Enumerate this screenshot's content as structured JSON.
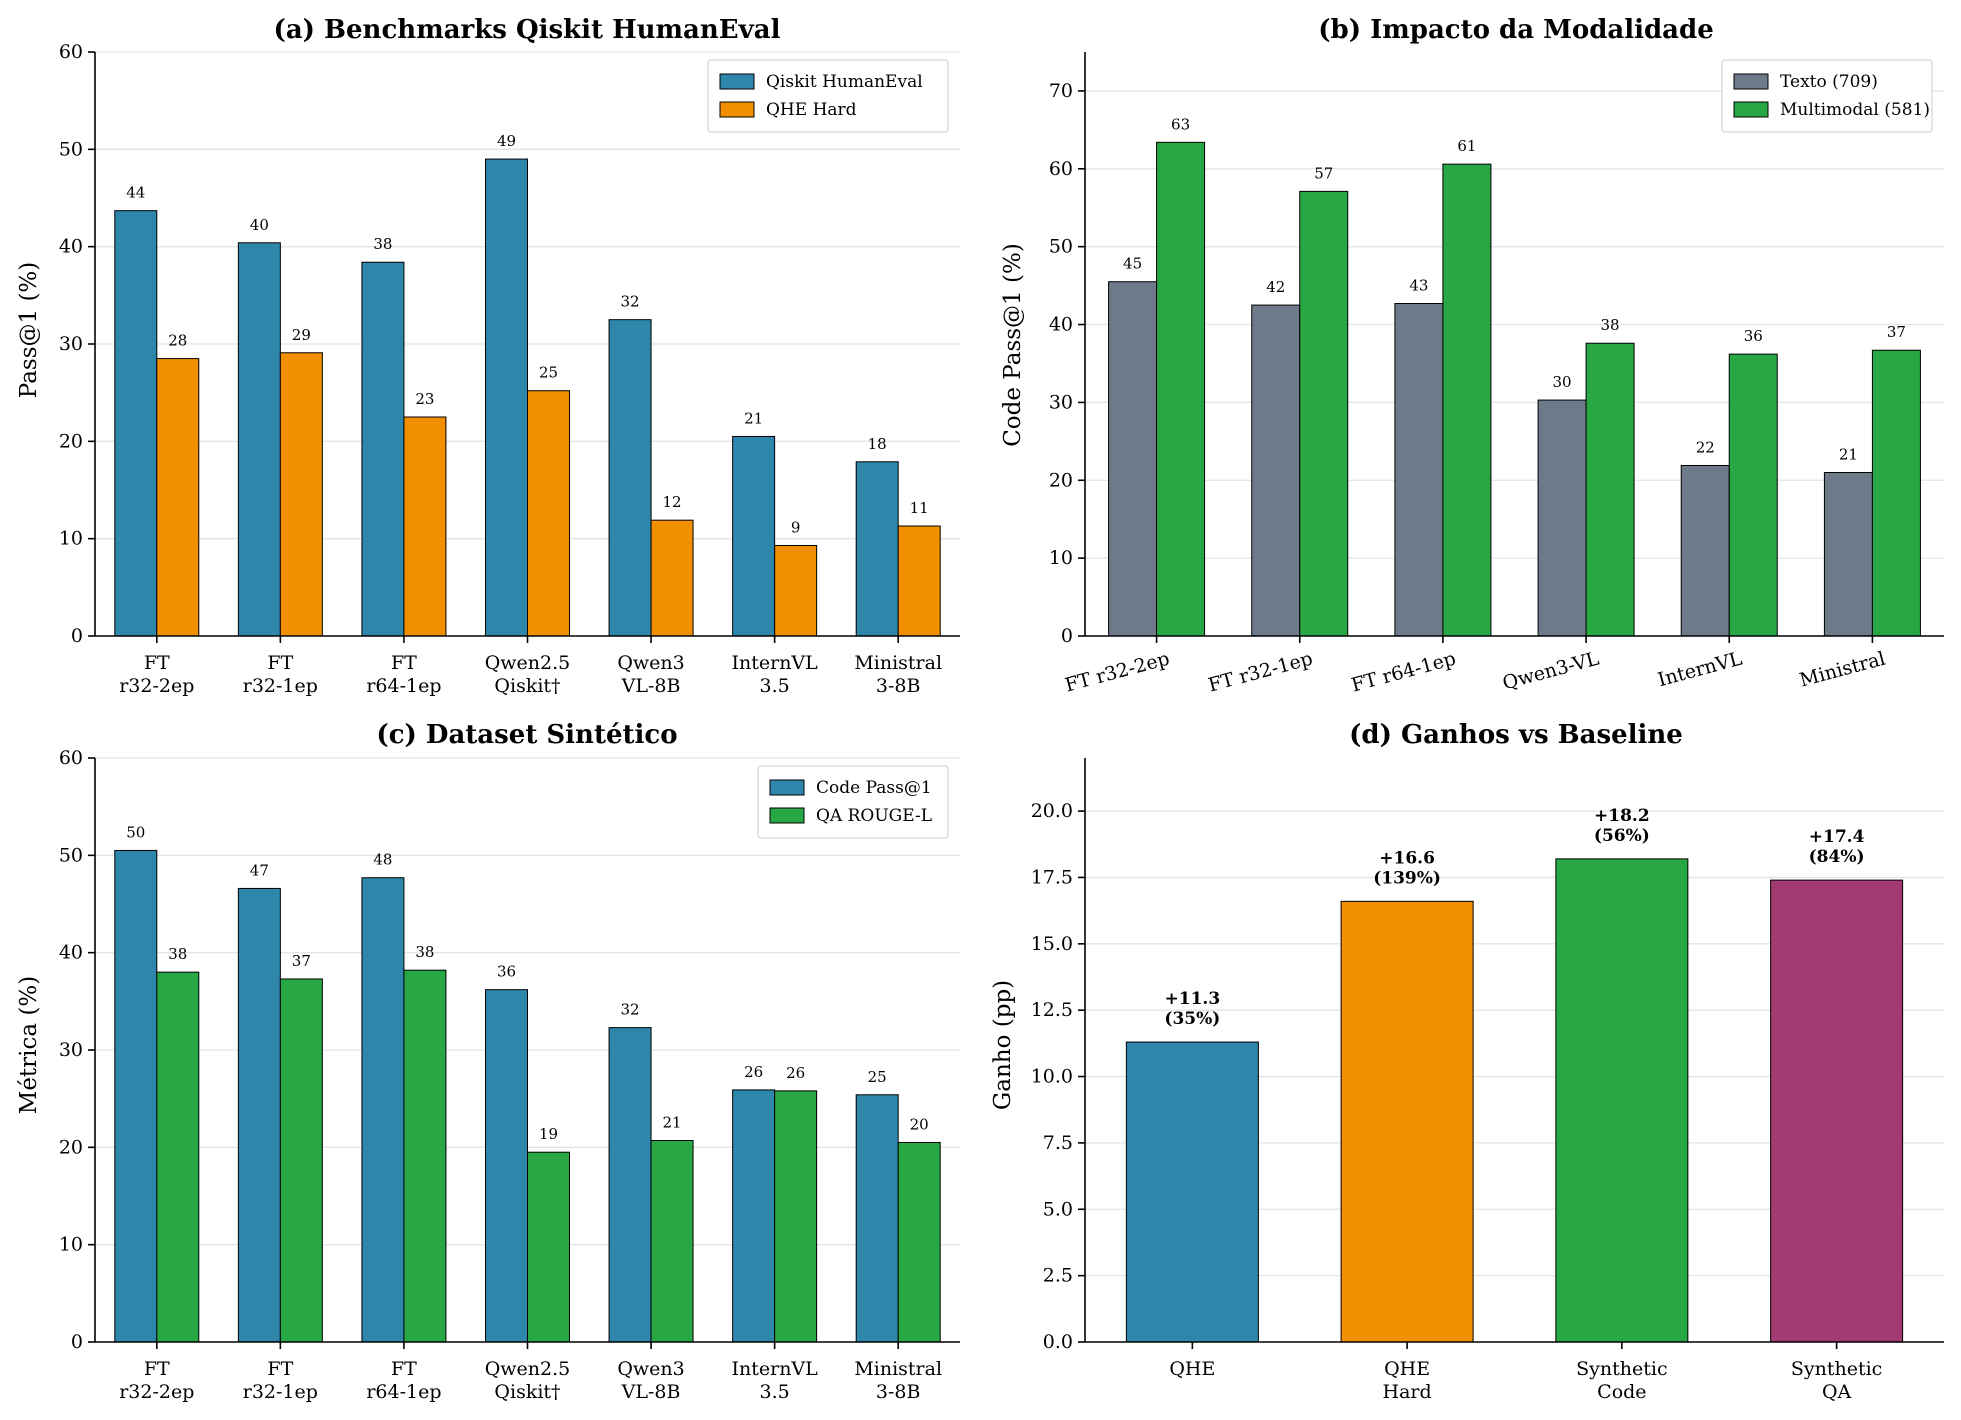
{
  "colors": {
    "blue": "#2e86ab",
    "orange": "#f18f01",
    "green": "#28a745",
    "gray": "#6c7a89",
    "purple": "#a23b72"
  },
  "chart_data": [
    {
      "type": "bar",
      "title": "(a) Benchmarks Qiskit HumanEval",
      "ylabel": "Pass@1 (%)",
      "xlabel": "",
      "ylim": [
        0,
        60
      ],
      "yticks": [
        "0",
        "10",
        "20",
        "30",
        "40",
        "50",
        "60"
      ],
      "categories": [
        [
          "FT",
          "r32-2ep"
        ],
        [
          "FT",
          "r32-1ep"
        ],
        [
          "FT",
          "r64-1ep"
        ],
        [
          "Qwen2.5",
          "Qiskit†"
        ],
        [
          "Qwen3",
          "VL-8B"
        ],
        [
          "InternVL",
          "3.5"
        ],
        [
          "Ministral",
          "3-8B"
        ]
      ],
      "series": [
        {
          "name": "Qiskit HumanEval",
          "color": "#2e86ab",
          "values": [
            43.7,
            40.4,
            38.4,
            49.0,
            32.5,
            20.5,
            17.9
          ],
          "labels": [
            "44",
            "40",
            "38",
            "49",
            "32",
            "21",
            "18"
          ]
        },
        {
          "name": "QHE Hard",
          "color": "#f18f01",
          "values": [
            28.5,
            29.1,
            22.5,
            25.2,
            11.9,
            9.3,
            11.3
          ],
          "labels": [
            "28",
            "29",
            "23",
            "25",
            "12",
            "9",
            "11"
          ]
        }
      ],
      "legend": "top-right",
      "grid": true
    },
    {
      "type": "bar",
      "title": "(b) Impacto da Modalidade",
      "ylabel": "Code Pass@1 (%)",
      "xlabel": "",
      "ylim": [
        0,
        75
      ],
      "yticks": [
        "0",
        "10",
        "20",
        "30",
        "40",
        "50",
        "60",
        "70"
      ],
      "categories": [
        [
          "FT r32-2ep"
        ],
        [
          "FT r32-1ep"
        ],
        [
          "FT r64-1ep"
        ],
        [
          "Qwen3-VL"
        ],
        [
          "InternVL"
        ],
        [
          "Ministral"
        ]
      ],
      "rotated_ticks": true,
      "series": [
        {
          "name": "Texto (709)",
          "color": "#6c7a89",
          "values": [
            45.5,
            42.5,
            42.7,
            30.3,
            21.9,
            21.0
          ],
          "labels": [
            "45",
            "42",
            "43",
            "30",
            "22",
            "21"
          ]
        },
        {
          "name": "Multimodal (581)",
          "color": "#28a745",
          "values": [
            63.4,
            57.1,
            60.6,
            37.6,
            36.2,
            36.7
          ],
          "labels": [
            "63",
            "57",
            "61",
            "38",
            "36",
            "37"
          ]
        }
      ],
      "legend": "top-right",
      "grid": true
    },
    {
      "type": "bar",
      "title": "(c) Dataset Sintético",
      "ylabel": "Métrica (%)",
      "xlabel": "",
      "ylim": [
        0,
        60
      ],
      "yticks": [
        "0",
        "10",
        "20",
        "30",
        "40",
        "50",
        "60"
      ],
      "categories": [
        [
          "FT",
          "r32-2ep"
        ],
        [
          "FT",
          "r32-1ep"
        ],
        [
          "FT",
          "r64-1ep"
        ],
        [
          "Qwen2.5",
          "Qiskit†"
        ],
        [
          "Qwen3",
          "VL-8B"
        ],
        [
          "InternVL",
          "3.5"
        ],
        [
          "Ministral",
          "3-8B"
        ]
      ],
      "series": [
        {
          "name": "Code Pass@1",
          "color": "#2e86ab",
          "values": [
            50.5,
            46.6,
            47.7,
            36.2,
            32.3,
            25.9,
            25.4
          ],
          "labels": [
            "50",
            "47",
            "48",
            "36",
            "32",
            "26",
            "25"
          ]
        },
        {
          "name": "QA ROUGE-L",
          "color": "#28a745",
          "values": [
            38.0,
            37.3,
            38.2,
            19.5,
            20.7,
            25.8,
            20.5
          ],
          "labels": [
            "38",
            "37",
            "38",
            "19",
            "21",
            "26",
            "20"
          ]
        }
      ],
      "legend": "top-right",
      "grid": true
    },
    {
      "type": "bar",
      "title": "(d) Ganhos vs Baseline",
      "ylabel": "Ganho (pp)",
      "xlabel": "",
      "ylim": [
        0,
        22
      ],
      "yticks": [
        "0.0",
        "2.5",
        "5.0",
        "7.5",
        "10.0",
        "12.5",
        "15.0",
        "17.5",
        "20.0"
      ],
      "categories": [
        [
          "QHE"
        ],
        [
          "QHE",
          "Hard"
        ],
        [
          "Synthetic",
          "Code"
        ],
        [
          "Synthetic",
          "QA"
        ]
      ],
      "values": [
        11.3,
        16.6,
        18.2,
        17.4
      ],
      "bar_colors": [
        "#2e86ab",
        "#f18f01",
        "#28a745",
        "#a23b72"
      ],
      "labels": [
        [
          "+11.3",
          "(35%)"
        ],
        [
          "+16.6",
          "(139%)"
        ],
        [
          "+18.2",
          "(56%)"
        ],
        [
          "+17.4",
          "(84%)"
        ]
      ],
      "grid": true
    }
  ]
}
